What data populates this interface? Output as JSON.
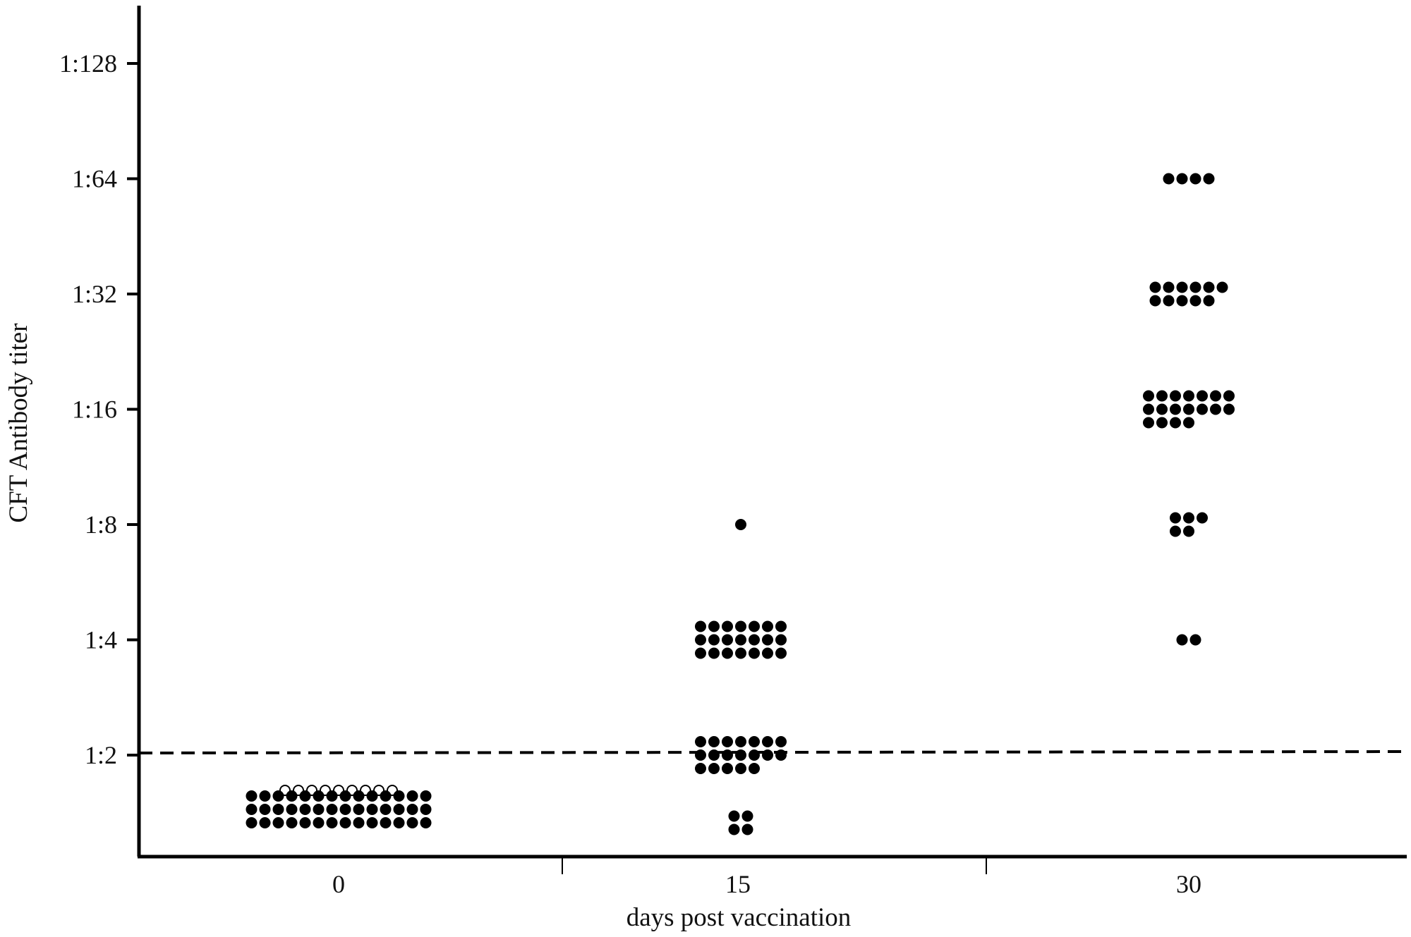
{
  "chart_data": {
    "type": "scatter",
    "title": "",
    "xlabel": "days post vaccination",
    "ylabel": "CFT Antibody titer",
    "x_categories": [
      "0",
      "15",
      "30"
    ],
    "y_scale": "log2",
    "y_ticks": [
      "1:2",
      "1:4",
      "1:8",
      "1:16",
      "1:32",
      "1:64",
      "1:128"
    ],
    "y_tick_values": [
      2,
      4,
      8,
      16,
      32,
      64,
      128
    ],
    "threshold": {
      "value": 2,
      "style": "dashed"
    },
    "grid": false,
    "legend": "none",
    "colors": {
      "filled": "#000000",
      "open": "#000000"
    },
    "groups": [
      {
        "x": "0",
        "titer": "below 1:2",
        "marker": "open",
        "count": 9
      },
      {
        "x": "0",
        "titer": "below 1:2",
        "marker": "filled",
        "count": 42
      },
      {
        "x": "15",
        "titer": "below 1:2",
        "marker": "filled",
        "count": 4
      },
      {
        "x": "15",
        "titer": "1:2",
        "marker": "filled",
        "count": 19
      },
      {
        "x": "15",
        "titer": "1:4",
        "marker": "filled",
        "count": 21
      },
      {
        "x": "15",
        "titer": "1:8",
        "marker": "filled",
        "count": 1
      },
      {
        "x": "30",
        "titer": "1:4",
        "marker": "filled",
        "count": 2
      },
      {
        "x": "30",
        "titer": "1:8",
        "marker": "filled",
        "count": 5
      },
      {
        "x": "30",
        "titer": "1:16",
        "marker": "filled",
        "count": 18
      },
      {
        "x": "30",
        "titer": "1:32",
        "marker": "filled",
        "count": 11
      },
      {
        "x": "30",
        "titer": "1:64",
        "marker": "filled",
        "count": 4
      }
    ]
  }
}
